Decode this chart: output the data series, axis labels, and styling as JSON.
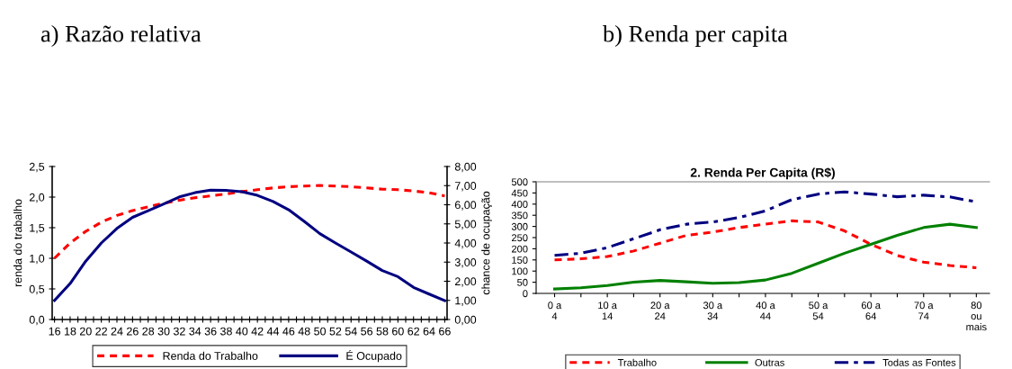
{
  "chart_data": [
    {
      "type": "line",
      "title": "a) Razão relativa",
      "ylabel": "renda do trabalho",
      "y2label": "chance de ocupação",
      "x": [
        16,
        18,
        20,
        22,
        24,
        26,
        28,
        30,
        32,
        34,
        36,
        38,
        40,
        42,
        44,
        46,
        48,
        50,
        52,
        54,
        56,
        58,
        60,
        62,
        64,
        66
      ],
      "series": [
        {
          "name": "Renda do Trabalho",
          "color": "#ff0000",
          "line_style": "dashed",
          "values": [
            1.0,
            1.25,
            1.44,
            1.59,
            1.7,
            1.78,
            1.84,
            1.9,
            1.95,
            1.99,
            2.02,
            2.05,
            2.09,
            2.12,
            2.15,
            2.17,
            2.18,
            2.19,
            2.18,
            2.17,
            2.15,
            2.13,
            2.12,
            2.1,
            2.07,
            2.02
          ]
        },
        {
          "name": "É Ocupado",
          "color": "#000080",
          "line_style": "solid",
          "axis": "y2",
          "values": [
            1.0,
            1.88,
            3.05,
            4.0,
            4.76,
            5.34,
            5.69,
            6.04,
            6.41,
            6.63,
            6.76,
            6.75,
            6.68,
            6.49,
            6.17,
            5.74,
            5.13,
            4.49,
            4.0,
            3.53,
            3.05,
            2.56,
            2.24,
            1.68,
            1.33,
            0.99
          ]
        }
      ],
      "xlim": [
        15.7,
        66.3
      ],
      "xticks": [
        16,
        {
          "value": 17,
          "label": null
        },
        18,
        {
          "value": 19,
          "label": null
        },
        20,
        {
          "value": 21,
          "label": null
        },
        22,
        {
          "value": 23,
          "label": null
        },
        24,
        {
          "value": 25,
          "label": null
        },
        26,
        {
          "value": 27,
          "label": null
        },
        28,
        {
          "value": 29,
          "label": null
        },
        30,
        {
          "value": 31,
          "label": null
        },
        32,
        {
          "value": 33,
          "label": null
        },
        34,
        {
          "value": 35,
          "label": null
        },
        36,
        {
          "value": 37,
          "label": null
        },
        38,
        {
          "value": 39,
          "label": null
        },
        40,
        {
          "value": 41,
          "label": null
        },
        42,
        {
          "value": 43,
          "label": null
        },
        44,
        {
          "value": 45,
          "label": null
        },
        46,
        {
          "value": 47,
          "label": null
        },
        48,
        {
          "value": 49,
          "label": null
        },
        50,
        {
          "value": 51,
          "label": null
        },
        52,
        {
          "value": 53,
          "label": null
        },
        54,
        {
          "value": 55,
          "label": null
        },
        56,
        {
          "value": 57,
          "label": null
        },
        58,
        {
          "value": 59,
          "label": null
        },
        60,
        {
          "value": 61,
          "label": null
        },
        62,
        {
          "value": 63,
          "label": null
        },
        64,
        {
          "value": 65,
          "label": null
        },
        66
      ],
      "ylim": [
        0,
        2.5
      ],
      "yticks": [
        {
          "value": 0,
          "label": "0,0"
        },
        {
          "value": 0.5,
          "label": "0,5"
        },
        {
          "value": 1,
          "label": "1,0"
        },
        {
          "value": 1.5,
          "label": "1,5"
        },
        {
          "value": 2,
          "label": "2,0"
        },
        {
          "value": 2.5,
          "label": "2,5"
        }
      ],
      "y2lim": [
        0,
        8
      ],
      "y2ticks": [
        {
          "value": 0,
          "label": "0,00"
        },
        {
          "value": 1,
          "label": "1,00"
        },
        {
          "value": 2,
          "label": "2,00"
        },
        {
          "value": 3,
          "label": "3,00"
        },
        {
          "value": 4,
          "label": "4,00"
        },
        {
          "value": 5,
          "label": "5,00"
        },
        {
          "value": 6,
          "label": "6,00"
        },
        {
          "value": 7,
          "label": "7,00"
        },
        {
          "value": 8,
          "label": "8,00"
        }
      ],
      "legend": "bottom",
      "grid": false
    },
    {
      "type": "line",
      "title": "b) Renda per capita",
      "subtitle": "2. Renda Per Capita (R$)",
      "categories": [
        "0 a 4",
        null,
        "10 a 14",
        null,
        "20 a 24",
        null,
        "30 a 34",
        null,
        "40 a 44",
        null,
        "50 a 54",
        null,
        "60 a 64",
        null,
        "70 a 74",
        null,
        "80 ou mais"
      ],
      "series": [
        {
          "name": "Trabalho",
          "color": "#ff0000",
          "line_style": "dashed",
          "values": [
            150,
            155,
            165,
            190,
            225,
            260,
            275,
            295,
            310,
            325,
            320,
            280,
            220,
            170,
            140,
            125,
            115
          ]
        },
        {
          "name": "Outras",
          "color": "#008000",
          "line_style": "solid",
          "values": [
            20,
            25,
            35,
            50,
            58,
            52,
            45,
            48,
            60,
            90,
            135,
            180,
            220,
            260,
            295,
            310,
            295
          ]
        },
        {
          "name": "Todas as Fontes",
          "color": "#000080",
          "line_style": "dashdot",
          "values": [
            170,
            180,
            205,
            245,
            285,
            310,
            320,
            340,
            370,
            420,
            445,
            455,
            445,
            433,
            440,
            432,
            410
          ]
        }
      ],
      "ylim": [
        0,
        500
      ],
      "yticks": [
        0,
        50,
        100,
        150,
        200,
        250,
        300,
        350,
        400,
        450,
        500
      ],
      "legend": "bottom",
      "grid": false
    }
  ]
}
